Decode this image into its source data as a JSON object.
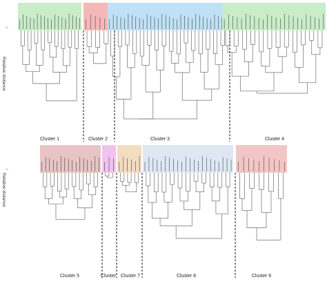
{
  "axis": {
    "ylabel_top": "Relative distance",
    "ylabel_bottom": "Relative distance"
  },
  "colors": {
    "cluster1": "#c9ecc9",
    "cluster2": "#f5b8b8",
    "cluster3": "#bfe0f5",
    "cluster4": "#c9ecc9",
    "cluster5": "#e8c4c4",
    "cluster6": "#f0c2f0",
    "cluster7": "#f4dcc0",
    "cluster8": "#dde8f4",
    "cluster9": "#f3c6c6",
    "line": "#6b6b6b",
    "dashed": "#111111"
  },
  "top_row": {
    "clusters": [
      {
        "name": "Cluster 1",
        "color_key": "cluster1",
        "leaves": 18
      },
      {
        "name": "Cluster 2",
        "color_key": "cluster2",
        "leaves": 6
      },
      {
        "name": "Cluster 3",
        "color_key": "cluster3",
        "leaves": 32
      },
      {
        "name": "Cluster 4",
        "color_key": "cluster4",
        "leaves": 24
      }
    ]
  },
  "bottom_row": {
    "clusters": [
      {
        "name": "Cluster 5",
        "color_key": "cluster5",
        "leaves": 16
      },
      {
        "name": "Cluster",
        "color_key": "cluster6",
        "leaves": 3
      },
      {
        "name": "Cluster 7",
        "color_key": "cluster7",
        "leaves": 6
      },
      {
        "name": "Cluster 8",
        "color_key": "cluster8",
        "leaves": 22
      },
      {
        "name": "Cluster 9",
        "color_key": "cluster9",
        "leaves": 10
      }
    ]
  }
}
